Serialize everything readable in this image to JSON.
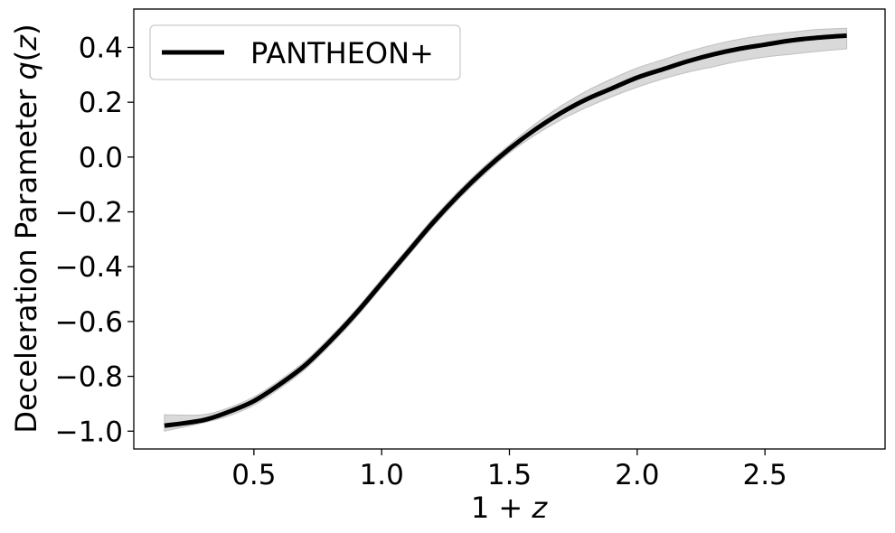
{
  "chart_data": {
    "type": "line",
    "xlabel": "1 + z",
    "ylabel": "Deceleration Parameter q(z)",
    "xlim": [
      0.03,
      2.97
    ],
    "ylim": [
      -1.065,
      0.54
    ],
    "xticks": [
      0.5,
      1.0,
      1.5,
      2.0,
      2.5
    ],
    "xtick_labels": [
      "0.5",
      "1.0",
      "1.5",
      "2.0",
      "2.5"
    ],
    "yticks": [
      -1.0,
      -0.8,
      -0.6,
      -0.4,
      -0.2,
      0.0,
      0.2,
      0.4
    ],
    "ytick_labels": [
      "−1.0",
      "−0.8",
      "−0.6",
      "−0.4",
      "−0.2",
      "0.0",
      "0.2",
      "0.4"
    ],
    "legend": {
      "position": "upper-left",
      "entries": [
        "PANTHEON+"
      ]
    },
    "grid": false,
    "series": [
      {
        "name": "PANTHEON+",
        "color": "#000000",
        "band_color": "#bfbfbf",
        "x": [
          0.15,
          0.3,
          0.4,
          0.5,
          0.6,
          0.7,
          0.8,
          0.9,
          1.0,
          1.1,
          1.2,
          1.3,
          1.4,
          1.5,
          1.6,
          1.7,
          1.8,
          1.9,
          2.0,
          2.1,
          2.2,
          2.3,
          2.4,
          2.5,
          2.6,
          2.7,
          2.82
        ],
        "y": [
          -0.98,
          -0.96,
          -0.93,
          -0.89,
          -0.83,
          -0.76,
          -0.67,
          -0.57,
          -0.46,
          -0.35,
          -0.24,
          -0.14,
          -0.05,
          0.03,
          0.1,
          0.16,
          0.21,
          0.25,
          0.29,
          0.32,
          0.35,
          0.375,
          0.395,
          0.41,
          0.425,
          0.435,
          0.443
        ],
        "lower": [
          -1.0,
          -0.97,
          -0.945,
          -0.905,
          -0.845,
          -0.775,
          -0.685,
          -0.585,
          -0.475,
          -0.365,
          -0.255,
          -0.155,
          -0.065,
          0.015,
          0.08,
          0.135,
          0.18,
          0.22,
          0.255,
          0.285,
          0.31,
          0.33,
          0.35,
          0.365,
          0.375,
          0.385,
          0.395
        ],
        "upper": [
          -0.94,
          -0.94,
          -0.915,
          -0.875,
          -0.815,
          -0.745,
          -0.655,
          -0.555,
          -0.445,
          -0.335,
          -0.225,
          -0.125,
          -0.035,
          0.045,
          0.12,
          0.185,
          0.24,
          0.285,
          0.325,
          0.355,
          0.385,
          0.41,
          0.43,
          0.445,
          0.455,
          0.465,
          0.47
        ]
      }
    ]
  }
}
